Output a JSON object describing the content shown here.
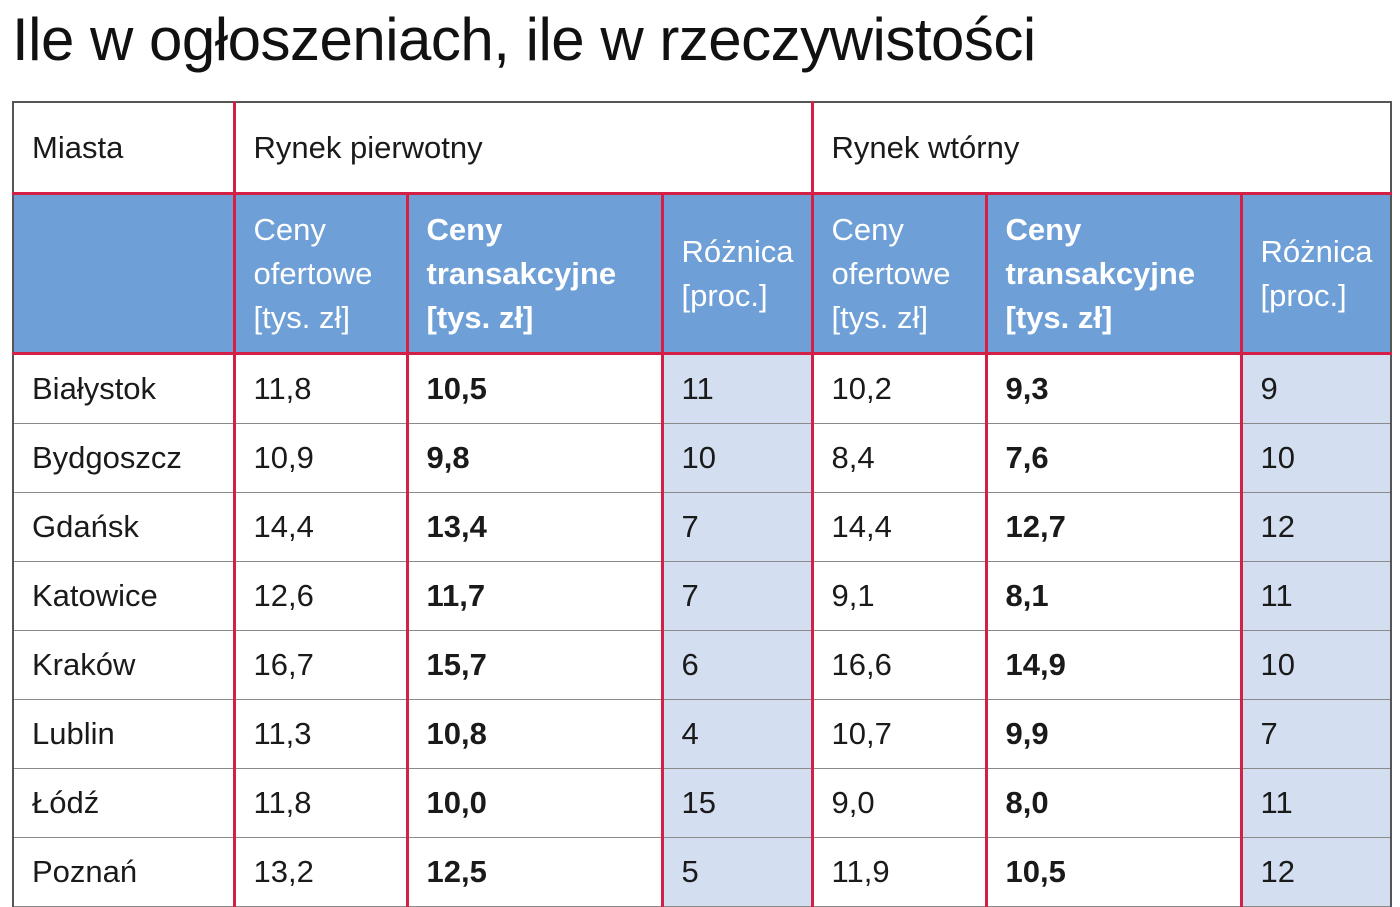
{
  "title": "Ile w ogłoszeniach, ile w rzeczywistości",
  "colors": {
    "header_blue": "#6e9fd6",
    "pct_column": "#d3dff0",
    "divider_red": "#d42047"
  },
  "headers": {
    "city": "Miasta",
    "primary_market": "Rynek pierwotny",
    "secondary_market": "Rynek wtórny",
    "asking_prices": "Ceny ofertowe [tys. zł]",
    "transaction_prices": "Ceny transakcyjne [tys. zł]",
    "difference": "Różnica [proc.]"
  },
  "rows": [
    {
      "city": "Białystok",
      "primary": {
        "asking": "11,8",
        "transaction": "10,5",
        "diff": "11"
      },
      "secondary": {
        "asking": "10,2",
        "transaction": "9,3",
        "diff": "9"
      }
    },
    {
      "city": "Bydgoszcz",
      "primary": {
        "asking": "10,9",
        "transaction": "9,8",
        "diff": "10"
      },
      "secondary": {
        "asking": "8,4",
        "transaction": "7,6",
        "diff": "10"
      }
    },
    {
      "city": "Gdańsk",
      "primary": {
        "asking": "14,4",
        "transaction": "13,4",
        "diff": "7"
      },
      "secondary": {
        "asking": "14,4",
        "transaction": "12,7",
        "diff": "12"
      }
    },
    {
      "city": "Katowice",
      "primary": {
        "asking": "12,6",
        "transaction": "11,7",
        "diff": "7"
      },
      "secondary": {
        "asking": "9,1",
        "transaction": "8,1",
        "diff": "11"
      }
    },
    {
      "city": "Kraków",
      "primary": {
        "asking": "16,7",
        "transaction": "15,7",
        "diff": "6"
      },
      "secondary": {
        "asking": "16,6",
        "transaction": "14,9",
        "diff": "10"
      }
    },
    {
      "city": "Lublin",
      "primary": {
        "asking": "11,3",
        "transaction": "10,8",
        "diff": "4"
      },
      "secondary": {
        "asking": "10,7",
        "transaction": "9,9",
        "diff": "7"
      }
    },
    {
      "city": "Łódź",
      "primary": {
        "asking": "11,8",
        "transaction": "10,0",
        "diff": "15"
      },
      "secondary": {
        "asking": "9,0",
        "transaction": "8,0",
        "diff": "11"
      }
    },
    {
      "city": "Poznań",
      "primary": {
        "asking": "13,2",
        "transaction": "12,5",
        "diff": "5"
      },
      "secondary": {
        "asking": "11,9",
        "transaction": "10,5",
        "diff": "12"
      }
    }
  ]
}
